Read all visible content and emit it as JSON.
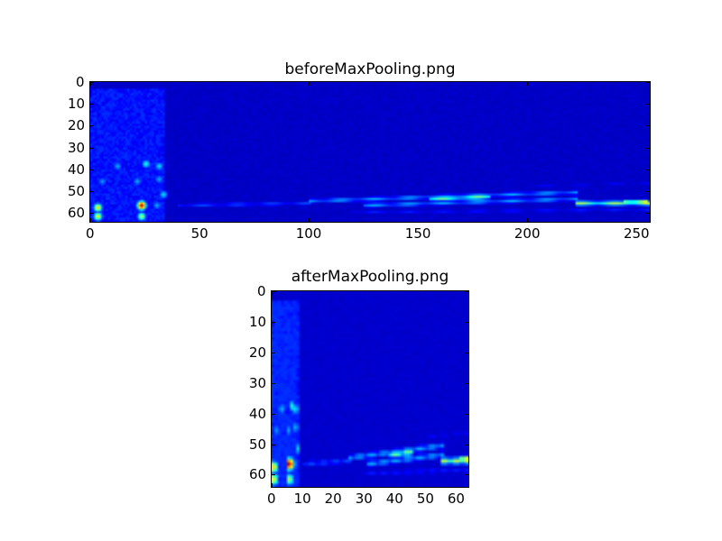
{
  "chart_data": [
    {
      "type": "heatmap",
      "title": "beforeMaxPooling.png",
      "colormap": "jet",
      "shape": [
        64,
        256
      ],
      "xlim": [
        0,
        256
      ],
      "ylim": [
        64,
        0
      ],
      "xticks": [
        0,
        50,
        100,
        150,
        200,
        250
      ],
      "yticks": [
        0,
        10,
        20,
        30,
        40,
        50,
        60
      ],
      "value_range": [
        0,
        1
      ],
      "background_value": 0.06,
      "regions": [
        {
          "x": [
            0,
            34
          ],
          "y": [
            3,
            64
          ],
          "value": 0.14
        }
      ],
      "blobs": [
        {
          "x": 3,
          "y": 57,
          "value": 0.65
        },
        {
          "x": 3,
          "y": 61,
          "value": 0.62
        },
        {
          "x": 23,
          "y": 56,
          "value": 0.95
        },
        {
          "x": 23,
          "y": 61,
          "value": 0.55
        },
        {
          "x": 25,
          "y": 37,
          "value": 0.4
        },
        {
          "x": 31,
          "y": 38,
          "value": 0.35
        },
        {
          "x": 12,
          "y": 38,
          "value": 0.3
        },
        {
          "x": 5,
          "y": 45,
          "value": 0.28
        },
        {
          "x": 21,
          "y": 45,
          "value": 0.3
        },
        {
          "x": 31,
          "y": 44,
          "value": 0.3
        },
        {
          "x": 33,
          "y": 51,
          "value": 0.35
        },
        {
          "x": 30,
          "y": 56,
          "value": 0.3
        }
      ],
      "ridges": [
        {
          "from": [
            40,
            56
          ],
          "to": [
            100,
            55
          ],
          "value": 0.2
        },
        {
          "from": [
            100,
            54
          ],
          "to": [
            222,
            50
          ],
          "value": 0.3
        },
        {
          "from": [
            125,
            56
          ],
          "to": [
            222,
            53
          ],
          "value": 0.3
        },
        {
          "from": [
            155,
            53
          ],
          "to": [
            182,
            52
          ],
          "value": 0.5
        },
        {
          "from": [
            222,
            55
          ],
          "to": [
            256,
            55
          ],
          "value": 0.55
        },
        {
          "from": [
            244,
            54.5
          ],
          "to": [
            254,
            54.5
          ],
          "value": 0.75
        },
        {
          "from": [
            120,
            59
          ],
          "to": [
            256,
            58
          ],
          "value": 0.15
        },
        {
          "from": [
            200,
            47
          ],
          "to": [
            256,
            46
          ],
          "value": 0.12
        }
      ]
    },
    {
      "type": "heatmap",
      "title": "afterMaxPooling.png",
      "colormap": "jet",
      "shape": [
        64,
        64
      ],
      "derived_from": "beforeMaxPooling.png max-pooled over columns by 4",
      "xlim": [
        0,
        64
      ],
      "ylim": [
        64,
        0
      ],
      "xticks": [
        0,
        10,
        20,
        30,
        40,
        50,
        60
      ],
      "yticks": [
        0,
        10,
        20,
        30,
        40,
        50,
        60
      ]
    }
  ]
}
